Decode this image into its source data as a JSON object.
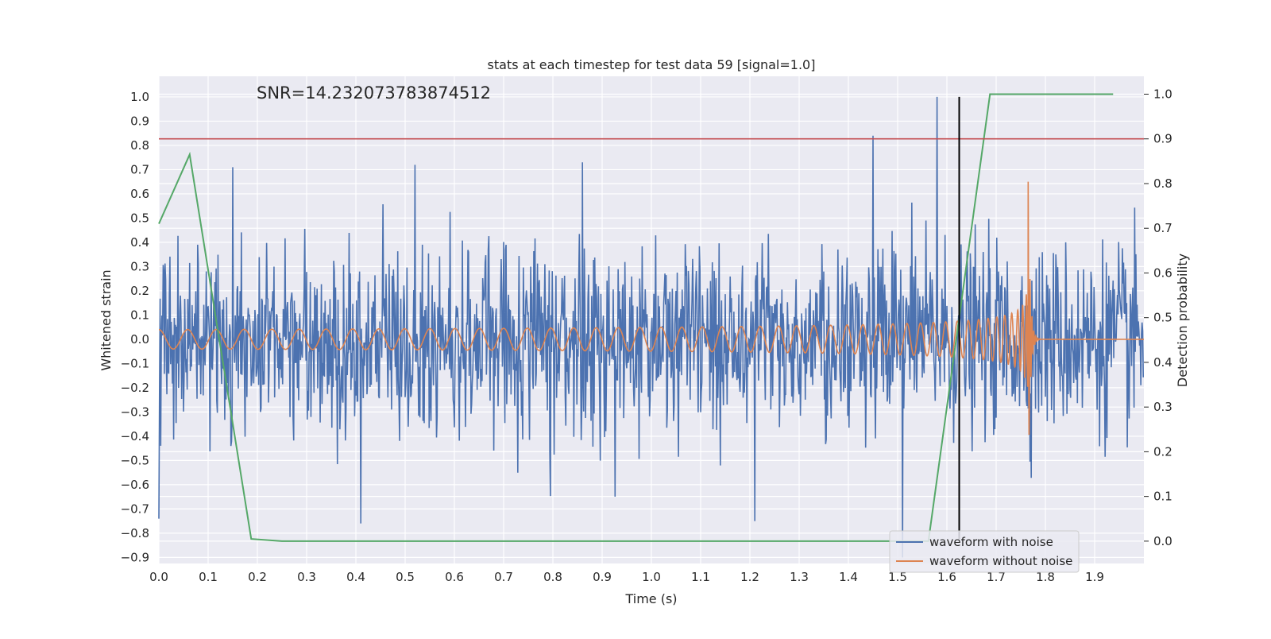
{
  "chart_data": {
    "type": "line",
    "title": "stats at each timestep for test data 59 [signal=1.0]",
    "annotation": "SNR=14.232073783874512",
    "xlabel": "Time (s)",
    "ylabel_left": "Whitened strain",
    "ylabel_right": "Detection probability",
    "xlim": [
      0.0,
      2.0
    ],
    "ylim_left": [
      -0.925,
      1.085
    ],
    "ylim_right": [
      -0.05,
      1.04
    ],
    "x_ticks": [
      "0.0",
      "0.1",
      "0.2",
      "0.3",
      "0.4",
      "0.5",
      "0.6",
      "0.7",
      "0.8",
      "0.9",
      "1.0",
      "1.1",
      "1.2",
      "1.3",
      "1.4",
      "1.5",
      "1.6",
      "1.7",
      "1.8",
      "1.9"
    ],
    "y_ticks_left": [
      "1.0",
      "0.9",
      "0.8",
      "0.7",
      "0.6",
      "0.5",
      "0.4",
      "0.3",
      "0.2",
      "0.1",
      "0.0",
      "−0.1",
      "−0.2",
      "−0.3",
      "−0.4",
      "−0.5",
      "−0.6",
      "−0.7",
      "−0.8",
      "−0.9"
    ],
    "y_ticks_right": [
      "1.0",
      "0.9",
      "0.8",
      "0.7",
      "0.6",
      "0.5",
      "0.4",
      "0.3",
      "0.2",
      "0.1",
      "0.0"
    ],
    "grid": true,
    "legend_position": "lower-right",
    "series": [
      {
        "name": "waveform with noise",
        "axis": "left",
        "color": "#4c72b0",
        "description_values": {
          "typical_amplitude_range": [
            -0.5,
            0.5
          ],
          "notable_peaks": [
            {
              "x": 1.58,
              "y": 1.0
            },
            {
              "x": 1.45,
              "y": 0.84
            },
            {
              "x": 0.15,
              "y": 0.71
            },
            {
              "x": 0.52,
              "y": 0.72
            },
            {
              "x": 0.86,
              "y": 0.73
            },
            {
              "x": 1.51,
              "y": -0.9
            },
            {
              "x": 1.21,
              "y": -0.75
            },
            {
              "x": 0.41,
              "y": -0.76
            },
            {
              "x": 0.0,
              "y": -0.74
            }
          ],
          "sample_count": 1600
        }
      },
      {
        "name": "waveform without noise",
        "axis": "left",
        "color": "#dd8452",
        "description_values": {
          "type": "chirp",
          "start_amplitude": 0.04,
          "start_frequency_hz": 17,
          "merger_time": 1.765,
          "peak_amplitude": 0.65,
          "post_merger_value": 0.0
        }
      },
      {
        "name": "",
        "axis": "right",
        "color": "#55a868",
        "x": [
          0.0,
          0.0625,
          0.1875,
          0.25,
          1.5625,
          1.6875,
          1.9375
        ],
        "y": [
          0.71,
          0.865,
          0.005,
          0.0,
          0.0,
          1.0,
          1.0
        ]
      }
    ],
    "reference_lines": [
      {
        "orientation": "horizontal",
        "axis": "right",
        "value": 0.9,
        "color": "#c44e52"
      },
      {
        "orientation": "vertical",
        "value": 1.625,
        "y_range_left": [
          -0.825,
          1.0
        ],
        "color": "#000000"
      }
    ]
  }
}
